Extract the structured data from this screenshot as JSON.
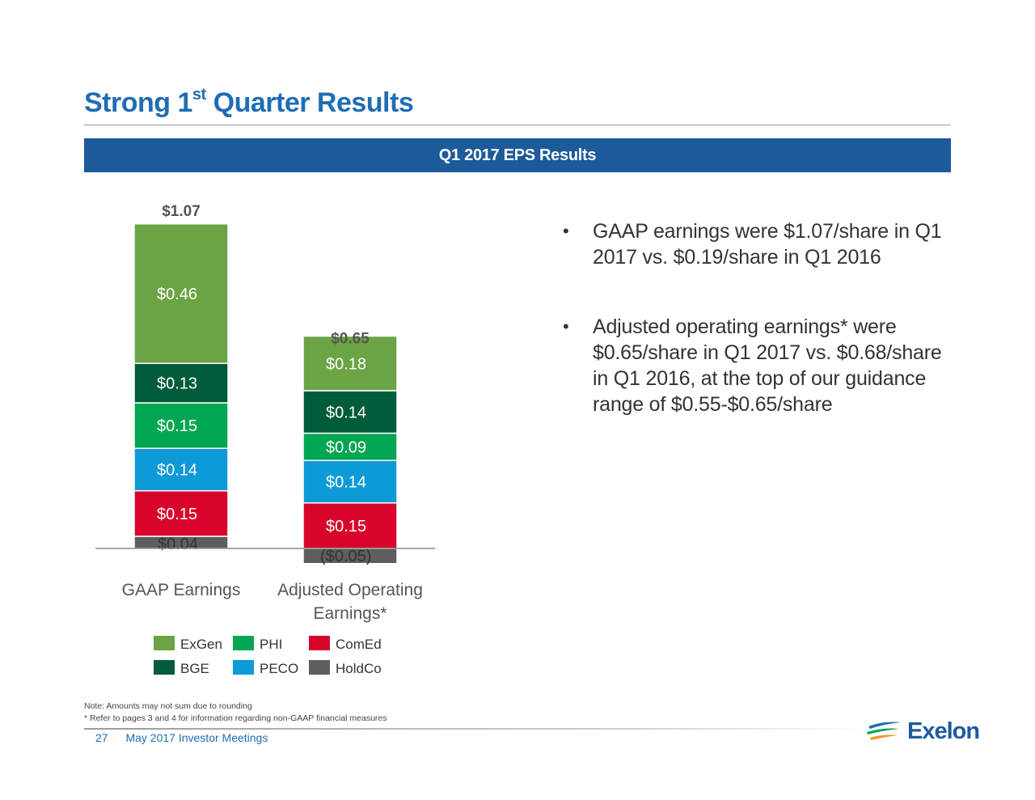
{
  "title": {
    "main": "Strong 1",
    "sup": "st",
    "rest": " Quarter Results"
  },
  "banner": "Q1 2017 EPS Results",
  "bullets": [
    "GAAP earnings were $1.07/share in Q1 2017 vs. $0.19/share in Q1 2016",
    "Adjusted operating earnings* were $0.65/share in Q1 2017 vs. $0.68/share in Q1 2016, at the top of our guidance range of $0.55-$0.65/share"
  ],
  "notes": [
    "Note: Amounts may not sum due to rounding",
    "* Refer to pages 3 and 4 for information regarding non-GAAP financial measures"
  ],
  "footer": {
    "page": "27",
    "event": "May 2017 Investor Meetings"
  },
  "logo": {
    "text": "Exelon"
  },
  "colors": {
    "ExGen": "#6aa444",
    "BGE": "#005c3b",
    "PHI": "#00a651",
    "PECO": "#0e9ad7",
    "ComEd": "#d9042b",
    "HoldCo": "#5e5e5e",
    "title": "#1f6db5",
    "banner": "#1c5a9a"
  },
  "chart_data": {
    "type": "bar",
    "stacked": true,
    "categories": [
      "GAAP Earnings",
      "Adjusted Operating Earnings*"
    ],
    "category_lines": [
      [
        "GAAP Earnings"
      ],
      [
        "Adjusted Operating",
        "Earnings*"
      ]
    ],
    "totals": [
      1.07,
      0.65
    ],
    "total_labels": [
      "$1.07",
      "$0.65"
    ],
    "series": [
      {
        "name": "HoldCo",
        "values": [
          0.04,
          -0.05
        ],
        "labels": [
          "$0.04",
          "($0.05)"
        ]
      },
      {
        "name": "ComEd",
        "values": [
          0.15,
          0.15
        ],
        "labels": [
          "$0.15",
          "$0.15"
        ]
      },
      {
        "name": "PECO",
        "values": [
          0.14,
          0.14
        ],
        "labels": [
          "$0.14",
          "$0.14"
        ]
      },
      {
        "name": "PHI",
        "values": [
          0.15,
          0.09
        ],
        "labels": [
          "$0.15",
          "$0.09"
        ]
      },
      {
        "name": "BGE",
        "values": [
          0.13,
          0.14
        ],
        "labels": [
          "$0.13",
          "$0.14"
        ]
      },
      {
        "name": "ExGen",
        "values": [
          0.46,
          0.18
        ],
        "labels": [
          "$0.46",
          "$0.18"
        ]
      }
    ],
    "legend_order": [
      "ExGen",
      "PHI",
      "ComEd",
      "BGE",
      "PECO",
      "HoldCo"
    ],
    "legend_placement": "bottom",
    "grid": false
  }
}
